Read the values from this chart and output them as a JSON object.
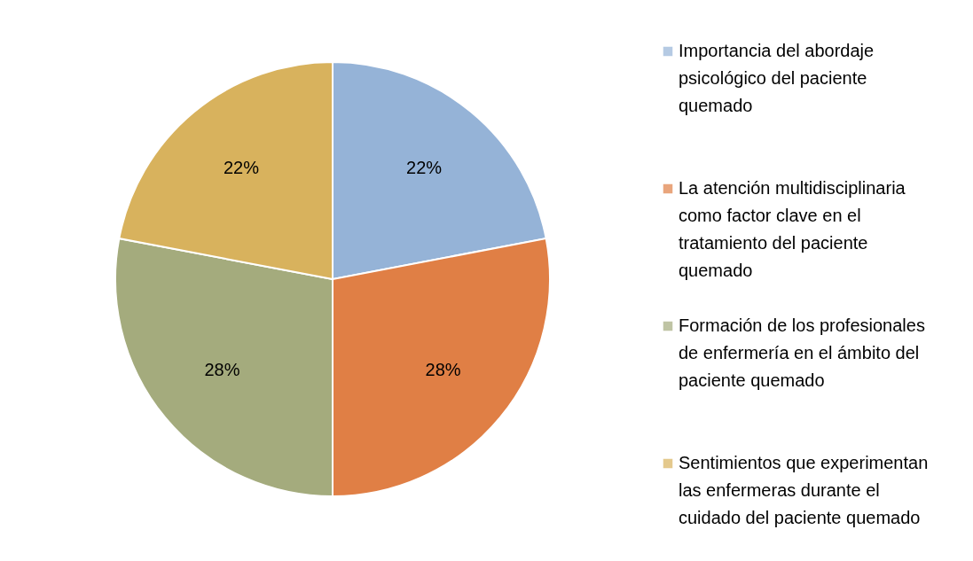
{
  "chart_data": {
    "type": "pie",
    "categories": [
      "Importancia del abordaje psicológico del paciente quemado",
      "La atención multidisciplinaria como factor clave en el tratamiento del paciente quemado",
      "Formación de los profesionales de enfermería en el ámbito del paciente quemado",
      "Sentimientos que experimentan las enfermeras durante el cuidado del paciente quemado"
    ],
    "values": [
      22,
      28,
      28,
      22
    ],
    "colors": [
      "#95b3d7",
      "#e07f45",
      "#a4ab7d",
      "#d8b25d"
    ],
    "value_labels": [
      "22%",
      "28%",
      "28%",
      "22%"
    ],
    "legend": "right"
  }
}
